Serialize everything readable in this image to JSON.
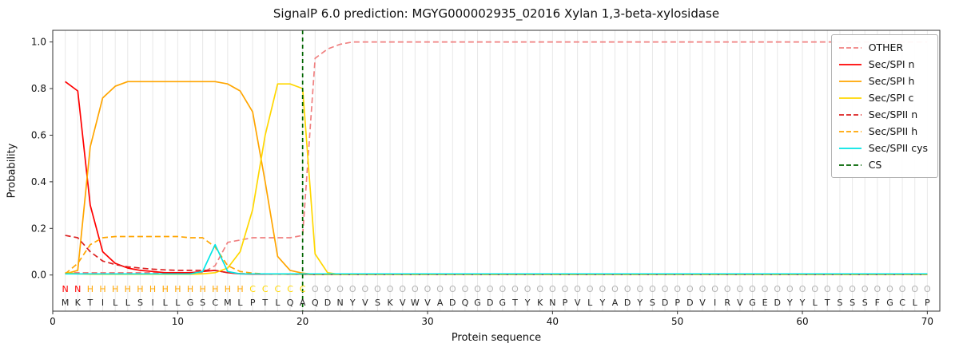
{
  "title": "SignalP 6.0 prediction: MGYG000002935_02016 Xylan 1,3-beta-xylosidase",
  "axes": {
    "xlabel": "Protein sequence",
    "ylabel": "Probability",
    "x_ticks": [
      0,
      10,
      20,
      30,
      40,
      50,
      60,
      70
    ],
    "y_ticks": [
      "0.0",
      "0.2",
      "0.4",
      "0.6",
      "0.8",
      "1.0"
    ],
    "xlim": [
      0,
      71
    ],
    "ylim": [
      -0.155,
      1.05
    ]
  },
  "chart_data": {
    "type": "line",
    "title": "SignalP 6.0 prediction: MGYG000002935_02016 Xylan 1,3-beta-xylosidase",
    "xlabel": "Protein sequence",
    "ylabel": "Probability",
    "x_start": 1,
    "x_end": 70,
    "grid": "vertical-per-residue",
    "legend_position": "upper right",
    "series": [
      {
        "name": "OTHER",
        "color": "#f08080",
        "dash": "dashed",
        "values": [
          0.01,
          0.01,
          0.01,
          0.01,
          0.01,
          0.01,
          0.01,
          0.01,
          0.01,
          0.01,
          0.01,
          0.01,
          0.04,
          0.14,
          0.15,
          0.16,
          0.16,
          0.16,
          0.16,
          0.17,
          0.93,
          0.97,
          0.99,
          1.0,
          1.0,
          1.0,
          1.0,
          1.0,
          1.0,
          1.0,
          1.0,
          1.0,
          1.0,
          1.0,
          1.0,
          1.0,
          1.0,
          1.0,
          1.0,
          1.0,
          1.0,
          1.0,
          1.0,
          1.0,
          1.0,
          1.0,
          1.0,
          1.0,
          1.0,
          1.0,
          1.0,
          1.0,
          1.0,
          1.0,
          1.0,
          1.0,
          1.0,
          1.0,
          1.0,
          1.0,
          1.0,
          1.0,
          1.0,
          1.0,
          1.0,
          1.0,
          1.0,
          1.0,
          1.0,
          1.0
        ]
      },
      {
        "name": "Sec/SPI n",
        "color": "#ff0000",
        "dash": "solid",
        "values": [
          0.83,
          0.79,
          0.3,
          0.1,
          0.05,
          0.03,
          0.02,
          0.015,
          0.01,
          0.01,
          0.01,
          0.015,
          0.02,
          0.01,
          0.005,
          0.004,
          0.004,
          0.004,
          0.004,
          0.004,
          0.002,
          0.002,
          0.002,
          0.002,
          0.002,
          0.002,
          0.002,
          0.002,
          0.002,
          0.002,
          0.002,
          0.002,
          0.002,
          0.002,
          0.002,
          0.002,
          0.002,
          0.002,
          0.002,
          0.002,
          0.002,
          0.002,
          0.002,
          0.002,
          0.002,
          0.002,
          0.002,
          0.002,
          0.002,
          0.002,
          0.002,
          0.002,
          0.002,
          0.002,
          0.002,
          0.002,
          0.002,
          0.002,
          0.002,
          0.002,
          0.002,
          0.002,
          0.002,
          0.002,
          0.002,
          0.002,
          0.002,
          0.002,
          0.002,
          0.002
        ]
      },
      {
        "name": "Sec/SPI h",
        "color": "#ffa500",
        "dash": "solid",
        "values": [
          0.005,
          0.02,
          0.55,
          0.76,
          0.81,
          0.83,
          0.83,
          0.83,
          0.83,
          0.83,
          0.83,
          0.83,
          0.83,
          0.82,
          0.79,
          0.7,
          0.4,
          0.08,
          0.02,
          0.008,
          0.002,
          0.002,
          0.002,
          0.002,
          0.002,
          0.002,
          0.002,
          0.002,
          0.002,
          0.002,
          0.002,
          0.002,
          0.002,
          0.002,
          0.002,
          0.002,
          0.002,
          0.002,
          0.002,
          0.002,
          0.002,
          0.002,
          0.002,
          0.002,
          0.002,
          0.002,
          0.002,
          0.002,
          0.002,
          0.002,
          0.002,
          0.002,
          0.002,
          0.002,
          0.002,
          0.002,
          0.002,
          0.002,
          0.002,
          0.002,
          0.002,
          0.002,
          0.002,
          0.002,
          0.002,
          0.002,
          0.002,
          0.002,
          0.002,
          0.002
        ]
      },
      {
        "name": "Sec/SPI c",
        "color": "#ffd700",
        "dash": "solid",
        "values": [
          0.01,
          0.005,
          0.003,
          0.003,
          0.003,
          0.003,
          0.003,
          0.003,
          0.003,
          0.003,
          0.003,
          0.005,
          0.01,
          0.03,
          0.1,
          0.28,
          0.6,
          0.82,
          0.82,
          0.8,
          0.09,
          0.01,
          0.002,
          0.002,
          0.002,
          0.002,
          0.002,
          0.002,
          0.002,
          0.002,
          0.002,
          0.002,
          0.002,
          0.002,
          0.002,
          0.002,
          0.002,
          0.002,
          0.002,
          0.002,
          0.002,
          0.002,
          0.002,
          0.002,
          0.002,
          0.002,
          0.002,
          0.002,
          0.002,
          0.002,
          0.002,
          0.002,
          0.002,
          0.002,
          0.002,
          0.002,
          0.002,
          0.002,
          0.002,
          0.002,
          0.002,
          0.002,
          0.002,
          0.002,
          0.002,
          0.002,
          0.002,
          0.002,
          0.002,
          0.002
        ]
      },
      {
        "name": "Sec/SPII n",
        "color": "#dc2020",
        "dash": "dashed",
        "values": [
          0.17,
          0.16,
          0.1,
          0.06,
          0.045,
          0.035,
          0.03,
          0.025,
          0.022,
          0.02,
          0.02,
          0.02,
          0.02,
          0.01,
          0.006,
          0.005,
          0.004,
          0.004,
          0.003,
          0.003,
          0.002,
          0.002,
          0.002,
          0.002,
          0.002,
          0.002,
          0.002,
          0.002,
          0.002,
          0.002,
          0.002,
          0.002,
          0.002,
          0.002,
          0.002,
          0.002,
          0.002,
          0.002,
          0.002,
          0.002,
          0.002,
          0.002,
          0.002,
          0.002,
          0.002,
          0.002,
          0.002,
          0.002,
          0.002,
          0.002,
          0.002,
          0.002,
          0.002,
          0.002,
          0.002,
          0.002,
          0.002,
          0.002,
          0.002,
          0.002,
          0.002,
          0.002,
          0.002,
          0.002,
          0.002,
          0.002,
          0.002,
          0.002,
          0.002,
          0.002
        ]
      },
      {
        "name": "Sec/SPII h",
        "color": "#ffa500",
        "dash": "dashed",
        "values": [
          0.005,
          0.05,
          0.13,
          0.16,
          0.165,
          0.165,
          0.165,
          0.165,
          0.165,
          0.165,
          0.16,
          0.16,
          0.12,
          0.04,
          0.015,
          0.008,
          0.005,
          0.004,
          0.003,
          0.003,
          0.002,
          0.002,
          0.002,
          0.002,
          0.002,
          0.002,
          0.002,
          0.002,
          0.002,
          0.002,
          0.002,
          0.002,
          0.002,
          0.002,
          0.002,
          0.002,
          0.002,
          0.002,
          0.002,
          0.002,
          0.002,
          0.002,
          0.002,
          0.002,
          0.002,
          0.002,
          0.002,
          0.002,
          0.002,
          0.002,
          0.002,
          0.002,
          0.002,
          0.002,
          0.002,
          0.002,
          0.002,
          0.002,
          0.002,
          0.002,
          0.002,
          0.002,
          0.002,
          0.002,
          0.002,
          0.002,
          0.002,
          0.002,
          0.002,
          0.002
        ]
      },
      {
        "name": "Sec/SPII cys",
        "color": "#00e5e5",
        "dash": "solid",
        "values": [
          0.005,
          0.005,
          0.005,
          0.005,
          0.005,
          0.005,
          0.005,
          0.005,
          0.005,
          0.005,
          0.005,
          0.015,
          0.13,
          0.015,
          0.005,
          0.005,
          0.005,
          0.005,
          0.005,
          0.005,
          0.005,
          0.005,
          0.005,
          0.005,
          0.005,
          0.005,
          0.005,
          0.005,
          0.005,
          0.005,
          0.005,
          0.005,
          0.005,
          0.005,
          0.005,
          0.005,
          0.005,
          0.005,
          0.005,
          0.005,
          0.005,
          0.005,
          0.005,
          0.005,
          0.005,
          0.005,
          0.005,
          0.005,
          0.005,
          0.005,
          0.005,
          0.005,
          0.005,
          0.005,
          0.005,
          0.005,
          0.005,
          0.005,
          0.005,
          0.005,
          0.005,
          0.005,
          0.005,
          0.005,
          0.005,
          0.005,
          0.005,
          0.005,
          0.005,
          0.005
        ]
      }
    ],
    "cs_line": {
      "name": "CS",
      "color": "#006400",
      "dash": "dashed",
      "x": 20
    }
  },
  "sequence": {
    "residues": "MKTILLSILLGSCMLPTLQAQDNYVSKVWVADQGDGTYKNPVLYADYSDPDVIRVGEDYYLTSSSFGCLP",
    "annotation": "NNHHHHHHHHHHHHHCCCCCOOOOOOOOOOOOOOOOOOOOOOOOOOOOOOOOOOOOOOOOOOOOOOOOOO",
    "annotation_colors": {
      "N": "#ff0000",
      "H": "#ffa500",
      "C": "#ffd700",
      "O": "#b3b3b3"
    }
  }
}
